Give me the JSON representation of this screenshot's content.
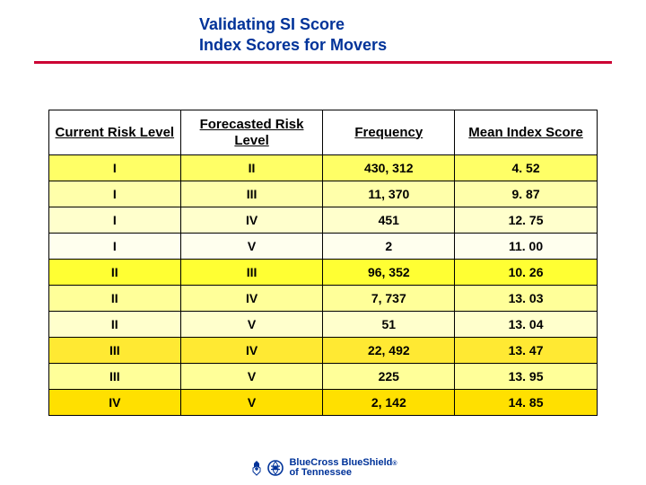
{
  "title": {
    "line1": "Validating SI Score",
    "line2": "Index Scores for Movers"
  },
  "table": {
    "columns": [
      {
        "label": "Current Risk Level",
        "width": "24%"
      },
      {
        "label": "Forecasted Risk Level",
        "width": "26%"
      },
      {
        "label": "Frequency",
        "width": "24%"
      },
      {
        "label": "Mean Index Score",
        "width": "26%"
      }
    ],
    "rows": [
      {
        "cells": [
          "I",
          "II",
          "430, 312",
          "4. 52"
        ],
        "bg": "#ffff66"
      },
      {
        "cells": [
          "I",
          "III",
          "11, 370",
          "9. 87"
        ],
        "bg": "#ffffaa"
      },
      {
        "cells": [
          "I",
          "IV",
          "451",
          "12. 75"
        ],
        "bg": "#ffffcc"
      },
      {
        "cells": [
          "I",
          "V",
          "2",
          "11. 00"
        ],
        "bg": "#ffffee"
      },
      {
        "cells": [
          "II",
          "III",
          "96, 352",
          "10. 26"
        ],
        "bg": "#ffff33"
      },
      {
        "cells": [
          "II",
          "IV",
          "7, 737",
          "13. 03"
        ],
        "bg": "#ffff99"
      },
      {
        "cells": [
          "II",
          "V",
          "51",
          "13. 04"
        ],
        "bg": "#ffffcc"
      },
      {
        "cells": [
          "III",
          "IV",
          "22, 492",
          "13. 47"
        ],
        "bg": "#ffe933"
      },
      {
        "cells": [
          "III",
          "V",
          "225",
          "13. 95"
        ],
        "bg": "#ffff99"
      },
      {
        "cells": [
          "IV",
          "V",
          "2, 142",
          "14. 85"
        ],
        "bg": "#ffe000"
      }
    ]
  },
  "footer": {
    "brand_top": "BlueCross BlueShield",
    "brand_bot": "of Tennessee",
    "mark_color": "#003399"
  }
}
